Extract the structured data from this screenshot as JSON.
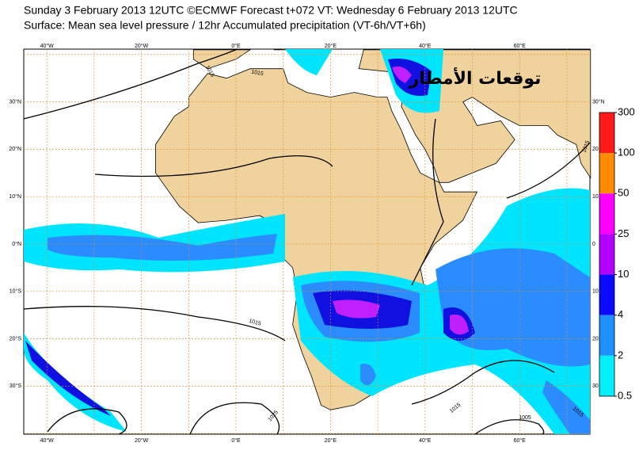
{
  "title": "Sunday 3 February 2013 12UTC ©ECMWF Forecast t+072 VT: Wednesday 6 February 2013 12UTC",
  "subtitle": "Surface: Mean sea level pressure / 12hr Accumulated precipitation (VT-6h/VT+6h)",
  "watermark": "توقعات الأمطار",
  "map": {
    "lon_labels": [
      "40°W",
      "20°W",
      "0°E",
      "20°E",
      "40°E",
      "60°E"
    ],
    "lat_labels_left": [
      "30°N",
      "20°N",
      "10°N",
      "0°N",
      "10°S",
      "20°S",
      "30°S"
    ],
    "lat_labels_right": [
      "30°N",
      "20",
      "10",
      "0",
      "10",
      "20",
      "30"
    ],
    "isobar_labels": [
      "1015",
      "1015",
      "1015",
      "1025",
      "1015",
      "1005",
      "1015",
      "1015"
    ]
  },
  "colorbar": {
    "levels": [
      300,
      100,
      50,
      25,
      10,
      4,
      2,
      0.5
    ],
    "colors": [
      "#ff1a1a",
      "#ff8c00",
      "#ff00ff",
      "#b400ff",
      "#0a0aff",
      "#1e90ff",
      "#00f0ff"
    ]
  }
}
